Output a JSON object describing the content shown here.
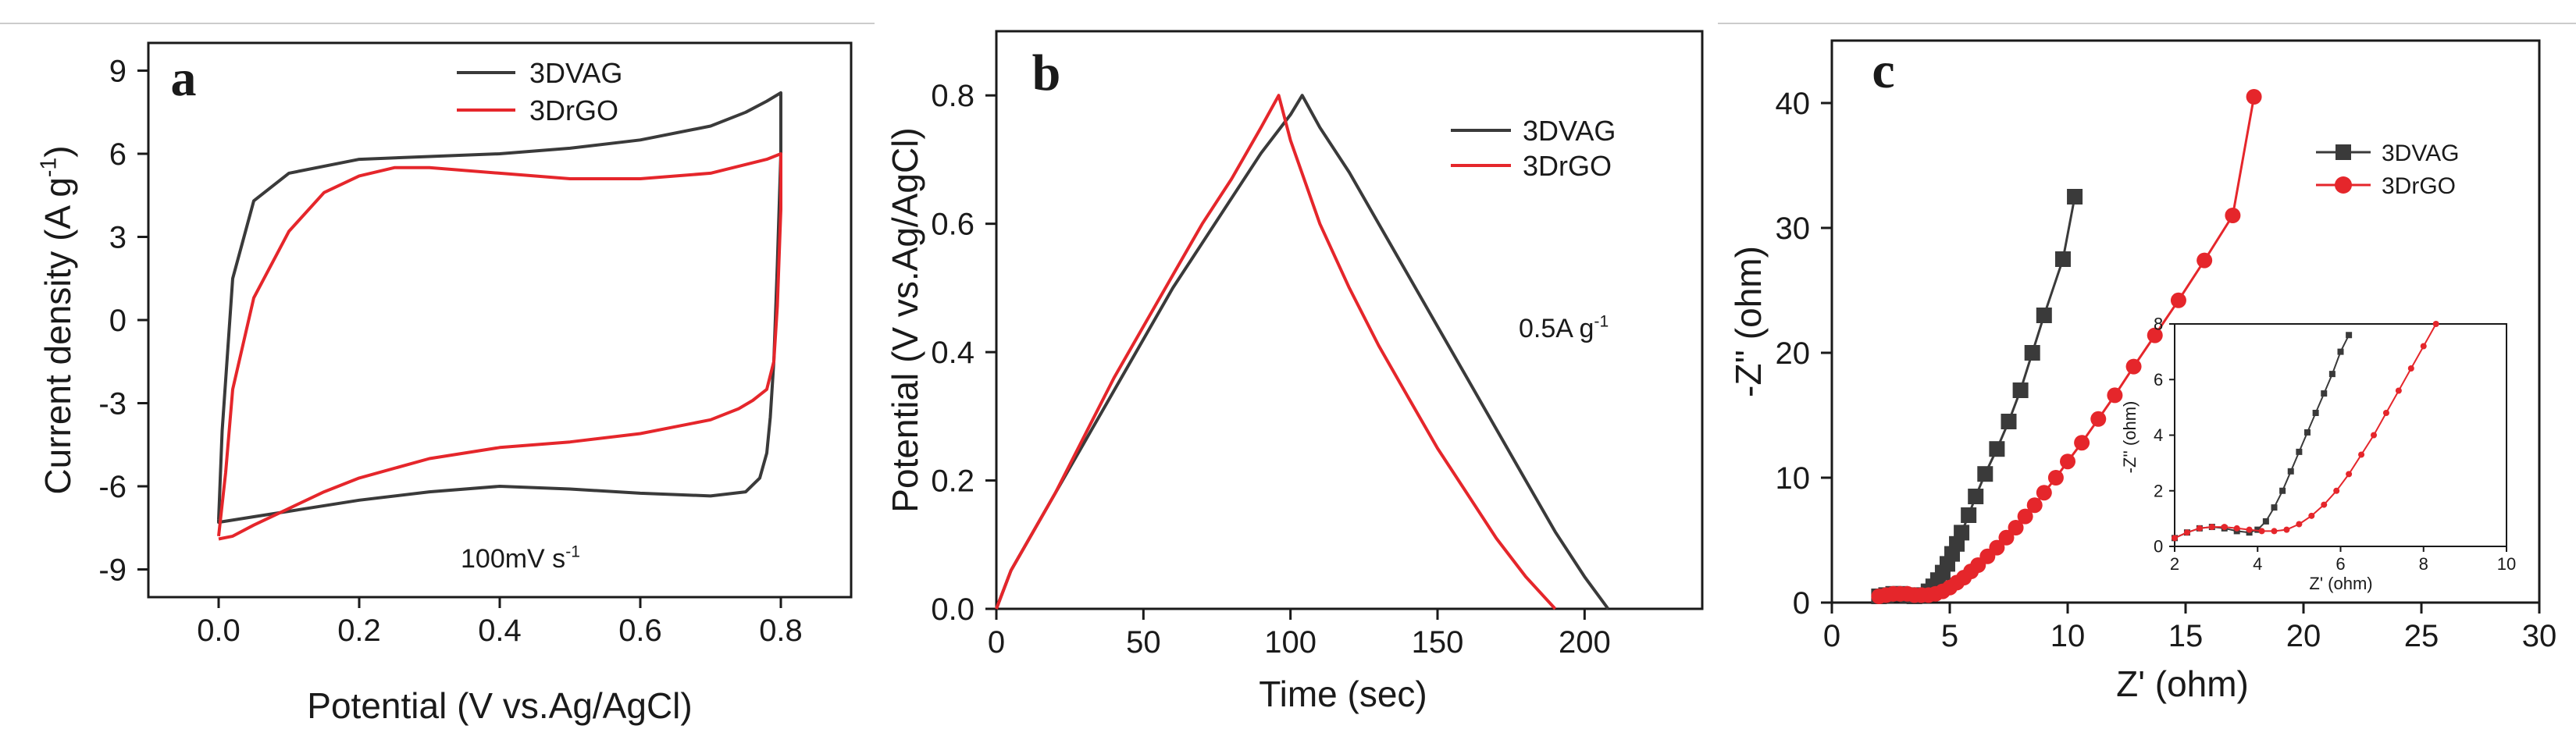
{
  "colors": {
    "series_black": "#3a3a3a",
    "series_red": "#e5262b",
    "frame": "#1a1a1a",
    "top_line": "#cccccc"
  },
  "chart_data": [
    {
      "panel": "a",
      "type": "line",
      "title": "",
      "xlabel": "Potential (V vs.Ag/AgCl)",
      "ylabel_main": "Current density (A g",
      "ylabel_sup": "-1",
      "ylabel_end": ")",
      "xlim": [
        -0.1,
        0.9
      ],
      "ylim": [
        -10,
        10
      ],
      "xticks": [
        0.0,
        0.2,
        0.4,
        0.6,
        0.8
      ],
      "xtick_labels": [
        "0.0",
        "0.2",
        "0.4",
        "0.6",
        "0.8"
      ],
      "yticks": [
        -9,
        -6,
        -3,
        0,
        3,
        6,
        9
      ],
      "ytick_labels": [
        "-9",
        "-6",
        "-3",
        "0",
        "3",
        "6",
        "9"
      ],
      "legend_position": "top-center",
      "annotation_main": "100mV s",
      "annotation_sup": "-1",
      "series": [
        {
          "name": "3DVAG",
          "color": "#3a3a3a",
          "x": [
            0.0,
            0.005,
            0.02,
            0.05,
            0.1,
            0.2,
            0.3,
            0.4,
            0.5,
            0.6,
            0.7,
            0.75,
            0.78,
            0.8,
            0.8,
            0.795,
            0.79,
            0.785,
            0.78,
            0.77,
            0.75,
            0.7,
            0.65,
            0.6,
            0.5,
            0.4,
            0.3,
            0.2,
            0.1,
            0.05,
            0.0,
            0.0
          ],
          "y": [
            -7.2,
            -4.0,
            1.5,
            4.3,
            5.3,
            5.8,
            5.9,
            6.0,
            6.2,
            6.5,
            7.0,
            7.5,
            7.9,
            8.2,
            6.0,
            2.0,
            -1.5,
            -3.5,
            -4.8,
            -5.7,
            -6.2,
            -6.35,
            -6.3,
            -6.25,
            -6.1,
            -6.0,
            -6.2,
            -6.5,
            -6.9,
            -7.1,
            -7.3,
            -7.2
          ]
        },
        {
          "name": "3DrGO",
          "color": "#e5262b",
          "x": [
            0.0,
            0.01,
            0.02,
            0.05,
            0.1,
            0.15,
            0.2,
            0.25,
            0.3,
            0.4,
            0.5,
            0.6,
            0.7,
            0.78,
            0.8,
            0.8,
            0.795,
            0.79,
            0.78,
            0.76,
            0.74,
            0.7,
            0.6,
            0.5,
            0.4,
            0.3,
            0.2,
            0.15,
            0.1,
            0.05,
            0.02,
            0.0
          ],
          "y": [
            -7.8,
            -5.5,
            -2.5,
            0.8,
            3.2,
            4.6,
            5.2,
            5.5,
            5.5,
            5.3,
            5.1,
            5.1,
            5.3,
            5.8,
            6.0,
            4.0,
            0.5,
            -1.5,
            -2.5,
            -2.9,
            -3.2,
            -3.6,
            -4.1,
            -4.4,
            -4.6,
            -5.0,
            -5.7,
            -6.2,
            -6.8,
            -7.4,
            -7.8,
            -7.9
          ]
        }
      ]
    },
    {
      "panel": "b",
      "type": "line",
      "title": "",
      "xlabel": "Time (sec)",
      "ylabel": "Potential (V vs.Ag/AgCl)",
      "xlim": [
        0,
        240
      ],
      "ylim": [
        0,
        0.9
      ],
      "xticks": [
        0,
        50,
        100,
        150,
        200
      ],
      "xtick_labels": [
        "0",
        "50",
        "100",
        "150",
        "200"
      ],
      "yticks": [
        0.0,
        0.2,
        0.4,
        0.6,
        0.8
      ],
      "ytick_labels": [
        "0.0",
        "0.2",
        "0.4",
        "0.6",
        "0.8"
      ],
      "legend_position": "top-right",
      "annotation_main": "0.5A g",
      "annotation_sup": "-1",
      "series": [
        {
          "name": "3DVAG",
          "color": "#3a3a3a",
          "x": [
            0,
            5,
            10,
            20,
            30,
            40,
            50,
            60,
            70,
            80,
            90,
            100,
            104,
            110,
            120,
            130,
            140,
            150,
            160,
            170,
            180,
            190,
            200,
            208
          ],
          "y": [
            0.0,
            0.06,
            0.1,
            0.18,
            0.26,
            0.34,
            0.42,
            0.5,
            0.57,
            0.64,
            0.71,
            0.77,
            0.8,
            0.75,
            0.68,
            0.6,
            0.52,
            0.44,
            0.36,
            0.28,
            0.2,
            0.12,
            0.05,
            0.0
          ]
        },
        {
          "name": "3DrGO",
          "color": "#e5262b",
          "x": [
            0,
            5,
            10,
            20,
            30,
            40,
            50,
            60,
            70,
            80,
            90,
            96,
            100,
            110,
            120,
            130,
            140,
            150,
            160,
            170,
            180,
            190
          ],
          "y": [
            0.0,
            0.06,
            0.1,
            0.18,
            0.27,
            0.36,
            0.44,
            0.52,
            0.6,
            0.67,
            0.75,
            0.8,
            0.73,
            0.6,
            0.5,
            0.41,
            0.33,
            0.25,
            0.18,
            0.11,
            0.05,
            0.0
          ]
        }
      ]
    },
    {
      "panel": "c",
      "type": "scatter",
      "title": "",
      "xlabel": "Z' (ohm)",
      "ylabel": "-Z'' (ohm)",
      "xlim": [
        0,
        30
      ],
      "ylim": [
        0,
        45
      ],
      "xticks": [
        0,
        5,
        10,
        15,
        20,
        25,
        30
      ],
      "xtick_labels": [
        "0",
        "5",
        "10",
        "15",
        "20",
        "25",
        "30"
      ],
      "yticks": [
        0,
        10,
        20,
        30,
        40
      ],
      "ytick_labels": [
        "0",
        "10",
        "20",
        "30",
        "40"
      ],
      "legend_position": "top-right",
      "series": [
        {
          "name": "3DVAG",
          "color": "#3a3a3a",
          "marker": "square",
          "x": [
            2.0,
            2.3,
            2.6,
            2.9,
            3.2,
            3.5,
            3.8,
            4.1,
            4.3,
            4.5,
            4.7,
            4.9,
            5.1,
            5.3,
            5.5,
            5.8,
            6.1,
            6.5,
            7.0,
            7.5,
            8.0,
            8.5,
            9.0,
            9.8,
            10.3
          ],
          "y": [
            0.5,
            0.6,
            0.7,
            0.7,
            0.6,
            0.5,
            0.6,
            0.9,
            1.3,
            1.8,
            2.4,
            3.1,
            3.9,
            4.7,
            5.6,
            7.0,
            8.5,
            10.3,
            12.3,
            14.5,
            17.0,
            20.0,
            23.0,
            27.5,
            32.5
          ]
        },
        {
          "name": "3DrGO",
          "color": "#e5262b",
          "marker": "circle",
          "x": [
            2.0,
            2.3,
            2.6,
            2.9,
            3.2,
            3.5,
            3.8,
            4.1,
            4.4,
            4.7,
            5.0,
            5.3,
            5.6,
            5.9,
            6.2,
            6.6,
            7.0,
            7.4,
            7.8,
            8.2,
            8.6,
            9.0,
            9.5,
            10.0,
            10.6,
            11.3,
            12.0,
            12.8,
            13.7,
            14.7,
            15.8,
            17.0,
            17.9
          ],
          "y": [
            0.5,
            0.6,
            0.7,
            0.7,
            0.7,
            0.6,
            0.6,
            0.6,
            0.7,
            0.9,
            1.2,
            1.6,
            2.0,
            2.5,
            3.0,
            3.7,
            4.4,
            5.2,
            6.0,
            6.9,
            7.8,
            8.8,
            10.0,
            11.3,
            12.8,
            14.7,
            16.6,
            18.9,
            21.4,
            24.2,
            27.4,
            31.0,
            40.5
          ]
        }
      ],
      "inset": {
        "xlabel": "Z' (ohm)",
        "ylabel": "-Z'' (ohm)",
        "xlim": [
          2,
          10
        ],
        "ylim": [
          0,
          8
        ],
        "xticks": [
          2,
          4,
          6,
          8,
          10
        ],
        "xtick_labels": [
          "2",
          "4",
          "6",
          "8",
          "10"
        ],
        "yticks": [
          0,
          2,
          4,
          6,
          8
        ],
        "ytick_labels": [
          "0",
          "2",
          "4",
          "6",
          "8"
        ],
        "series": [
          {
            "name": "3DVAG",
            "color": "#3a3a3a",
            "marker": "square",
            "x": [
              2.0,
              2.3,
              2.6,
              2.9,
              3.2,
              3.5,
              3.8,
              4.0,
              4.2,
              4.4,
              4.6,
              4.8,
              5.0,
              5.2,
              5.4,
              5.6,
              5.8,
              6.0,
              6.2
            ],
            "y": [
              0.3,
              0.5,
              0.65,
              0.7,
              0.65,
              0.55,
              0.5,
              0.6,
              0.9,
              1.4,
              2.0,
              2.7,
              3.4,
              4.1,
              4.8,
              5.5,
              6.2,
              7.0,
              7.6
            ]
          },
          {
            "name": "3DrGO",
            "color": "#e5262b",
            "marker": "circle",
            "x": [
              2.0,
              2.3,
              2.6,
              2.9,
              3.2,
              3.5,
              3.8,
              4.1,
              4.4,
              4.7,
              5.0,
              5.3,
              5.6,
              5.9,
              6.2,
              6.5,
              6.8,
              7.1,
              7.4,
              7.7,
              8.0,
              8.3
            ],
            "y": [
              0.3,
              0.5,
              0.65,
              0.7,
              0.7,
              0.65,
              0.6,
              0.55,
              0.55,
              0.6,
              0.8,
              1.1,
              1.5,
              2.0,
              2.6,
              3.3,
              4.0,
              4.8,
              5.6,
              6.4,
              7.2,
              8.0
            ]
          }
        ]
      }
    }
  ]
}
